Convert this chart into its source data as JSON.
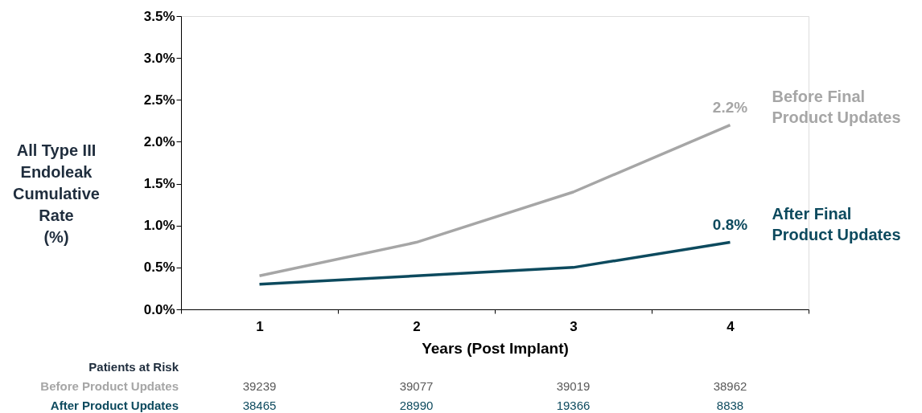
{
  "chart_data": {
    "type": "line",
    "xlabel": "Years (Post Implant)",
    "ylabel": "All Type III\nEndoleak\nCumulative\nRate\n(%)",
    "categories": [
      "1",
      "2",
      "3",
      "4"
    ],
    "series": [
      {
        "name": "Before Final\nProduct Updates",
        "color": "#a6a6a6",
        "values": [
          0.4,
          0.8,
          1.4,
          2.2
        ],
        "value_labels": [
          null,
          null,
          null,
          "2.2%"
        ]
      },
      {
        "name": "After Final\nProduct Updates",
        "color": "#0d4a5e",
        "values": [
          0.3,
          0.4,
          0.5,
          0.8
        ],
        "value_labels": [
          null,
          null,
          null,
          "0.8%"
        ]
      }
    ],
    "ylim": [
      0,
      3.5
    ],
    "yticks": [
      {
        "value": 0,
        "label": "0.0%"
      },
      {
        "value": 0.5,
        "label": "0.5%"
      },
      {
        "value": 1,
        "label": "1.0%"
      },
      {
        "value": 1.5,
        "label": "1.5%"
      },
      {
        "value": 2,
        "label": "2.0%"
      },
      {
        "value": 2.5,
        "label": "2.5%"
      },
      {
        "value": 3,
        "label": "3.0%"
      },
      {
        "value": 3.5,
        "label": "3.5%"
      }
    ],
    "grid": false,
    "marker": "none",
    "line_style": "solid",
    "annotations": [
      "Patients at Risk",
      "Before Product Updates",
      "39239",
      "39077",
      "39019",
      "38962",
      "After Product Updates",
      "38465",
      "28990",
      "19366",
      "8838"
    ]
  }
}
